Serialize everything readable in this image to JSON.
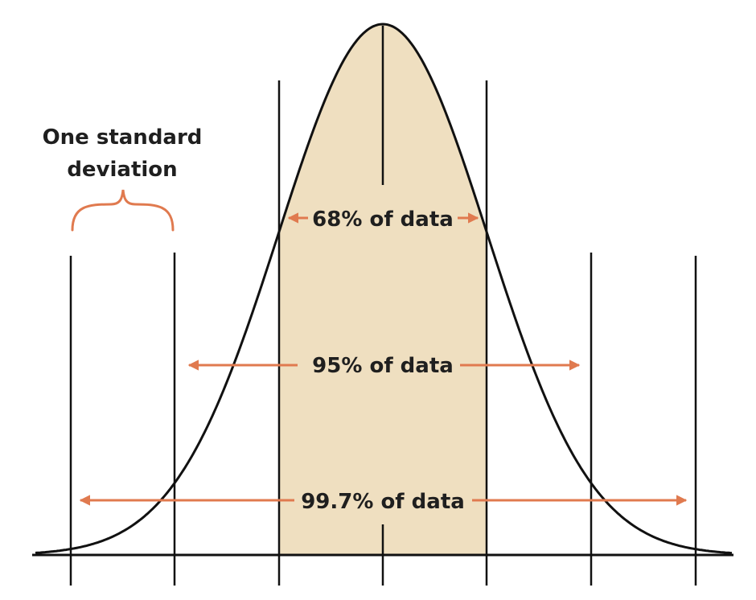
{
  "annotation": {
    "line1": "One standard",
    "line2": "deviation"
  },
  "ranges": {
    "one_sd": "68% of data",
    "two_sd": "95% of data",
    "three_sd": "99.7% of data"
  },
  "colors": {
    "curve": "#111111",
    "band_fill": "#efdfc0",
    "arrow": "#e07a4f",
    "text": "#1f1f1f"
  }
}
